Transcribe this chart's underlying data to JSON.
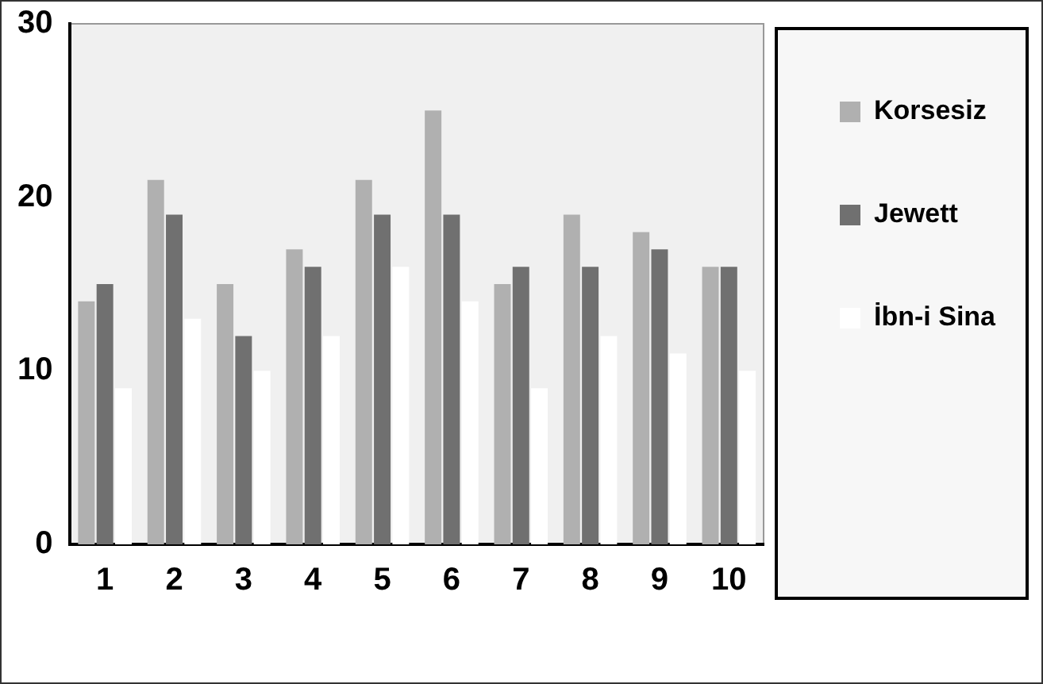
{
  "chart_data": {
    "type": "bar",
    "categories": [
      "1",
      "2",
      "3",
      "4",
      "5",
      "6",
      "7",
      "8",
      "9",
      "10"
    ],
    "series": [
      {
        "name": "Korsesiz",
        "color": "#b0b0b0",
        "values": [
          14,
          21,
          15,
          17,
          21,
          25,
          15,
          19,
          18,
          16
        ]
      },
      {
        "name": "Jewett",
        "color": "#707070",
        "values": [
          15,
          19,
          12,
          16,
          19,
          19,
          16,
          16,
          17,
          16
        ]
      },
      {
        "name": "İbn-i Sina",
        "color": "#ffffff",
        "values": [
          9,
          13,
          10,
          12,
          16,
          14,
          9,
          12,
          11,
          10
        ]
      }
    ],
    "ylim": [
      0,
      30
    ],
    "yticks": [
      0,
      10,
      20,
      30
    ],
    "grid": false,
    "legend": "right"
  }
}
